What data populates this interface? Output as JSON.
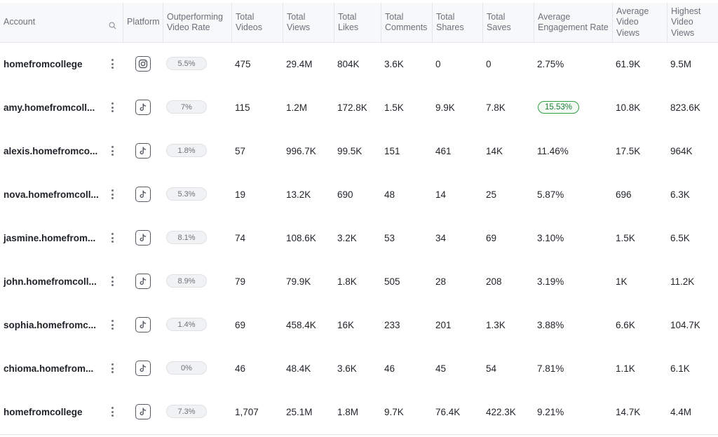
{
  "columns": {
    "account": "Account",
    "platform": "Platform",
    "outperforming": "Outperforming\nVideo Rate",
    "total_videos": "Total\nVideos",
    "total_views": "Total\nViews",
    "total_likes": "Total\nLikes",
    "total_comments": "Total\nComments",
    "total_shares": "Total\nShares",
    "total_saves": "Total\nSaves",
    "avg_engagement": "Average\nEngagement Rate",
    "avg_video_views": "Average\nVideo\nViews",
    "highest_video_views": "Highest\nVideo\nViews"
  },
  "rows": [
    {
      "account": "homefromcollege",
      "platform": "instagram",
      "rate": "5.5%",
      "videos": "475",
      "views": "29.4M",
      "likes": "804K",
      "comments": "3.6K",
      "shares": "0",
      "saves": "0",
      "engagement": "2.75%",
      "engagement_highlight": false,
      "avg_views": "61.9K",
      "highest_views": "9.5M"
    },
    {
      "account": "amy.homefromcoll...",
      "platform": "tiktok",
      "rate": "7%",
      "videos": "115",
      "views": "1.2M",
      "likes": "172.8K",
      "comments": "1.5K",
      "shares": "9.9K",
      "saves": "7.8K",
      "engagement": "15.53%",
      "engagement_highlight": true,
      "avg_views": "10.8K",
      "highest_views": "823.6K"
    },
    {
      "account": "alexis.homefromco...",
      "platform": "tiktok",
      "rate": "1.8%",
      "videos": "57",
      "views": "996.7K",
      "likes": "99.5K",
      "comments": "151",
      "shares": "461",
      "saves": "14K",
      "engagement": "11.46%",
      "engagement_highlight": false,
      "avg_views": "17.5K",
      "highest_views": "964K"
    },
    {
      "account": "nova.homefromcoll...",
      "platform": "tiktok",
      "rate": "5.3%",
      "videos": "19",
      "views": "13.2K",
      "likes": "690",
      "comments": "48",
      "shares": "14",
      "saves": "25",
      "engagement": "5.87%",
      "engagement_highlight": false,
      "avg_views": "696",
      "highest_views": "6.3K"
    },
    {
      "account": "jasmine.homefrom...",
      "platform": "tiktok",
      "rate": "8.1%",
      "videos": "74",
      "views": "108.6K",
      "likes": "3.2K",
      "comments": "53",
      "shares": "34",
      "saves": "69",
      "engagement": "3.10%",
      "engagement_highlight": false,
      "avg_views": "1.5K",
      "highest_views": "6.5K"
    },
    {
      "account": "john.homefromcoll...",
      "platform": "tiktok",
      "rate": "8.9%",
      "videos": "79",
      "views": "79.9K",
      "likes": "1.8K",
      "comments": "505",
      "shares": "28",
      "saves": "208",
      "engagement": "3.19%",
      "engagement_highlight": false,
      "avg_views": "1K",
      "highest_views": "11.2K"
    },
    {
      "account": "sophia.homefromc...",
      "platform": "tiktok",
      "rate": "1.4%",
      "videos": "69",
      "views": "458.4K",
      "likes": "16K",
      "comments": "233",
      "shares": "201",
      "saves": "1.3K",
      "engagement": "3.88%",
      "engagement_highlight": false,
      "avg_views": "6.6K",
      "highest_views": "104.7K"
    },
    {
      "account": "chioma.homefrom...",
      "platform": "tiktok",
      "rate": "0%",
      "videos": "46",
      "views": "48.4K",
      "likes": "3.6K",
      "comments": "46",
      "shares": "45",
      "saves": "54",
      "engagement": "7.81%",
      "engagement_highlight": false,
      "avg_views": "1.1K",
      "highest_views": "6.1K"
    },
    {
      "account": "homefromcollege",
      "platform": "tiktok",
      "rate": "7.3%",
      "videos": "1,707",
      "views": "25.1M",
      "likes": "1.8M",
      "comments": "9.7K",
      "shares": "76.4K",
      "saves": "422.3K",
      "engagement": "9.21%",
      "engagement_highlight": false,
      "avg_views": "14.7K",
      "highest_views": "4.4M"
    }
  ],
  "colors": {
    "highlight_green": "#1a7f37",
    "header_bg": "#f7f8fa"
  }
}
